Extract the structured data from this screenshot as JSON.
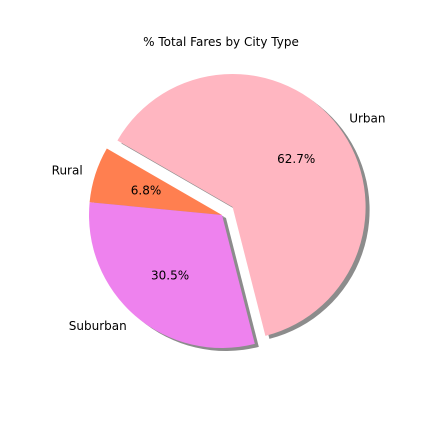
{
  "chart_data": {
    "type": "pie",
    "title": "% Total Fares by City Type",
    "slices": [
      {
        "label": "Rural",
        "value": 6.8,
        "pct_label": "6.8%",
        "color": "#ff7f50",
        "explode": false
      },
      {
        "label": "Suburban",
        "value": 30.5,
        "pct_label": "30.5%",
        "color": "#ee82ee",
        "explode": false
      },
      {
        "label": "Urban",
        "value": 62.7,
        "pct_label": "62.7%",
        "color": "#ffb6c1",
        "explode": true
      }
    ],
    "start_angle_deg": 150,
    "shadow": true,
    "legend": "none"
  }
}
